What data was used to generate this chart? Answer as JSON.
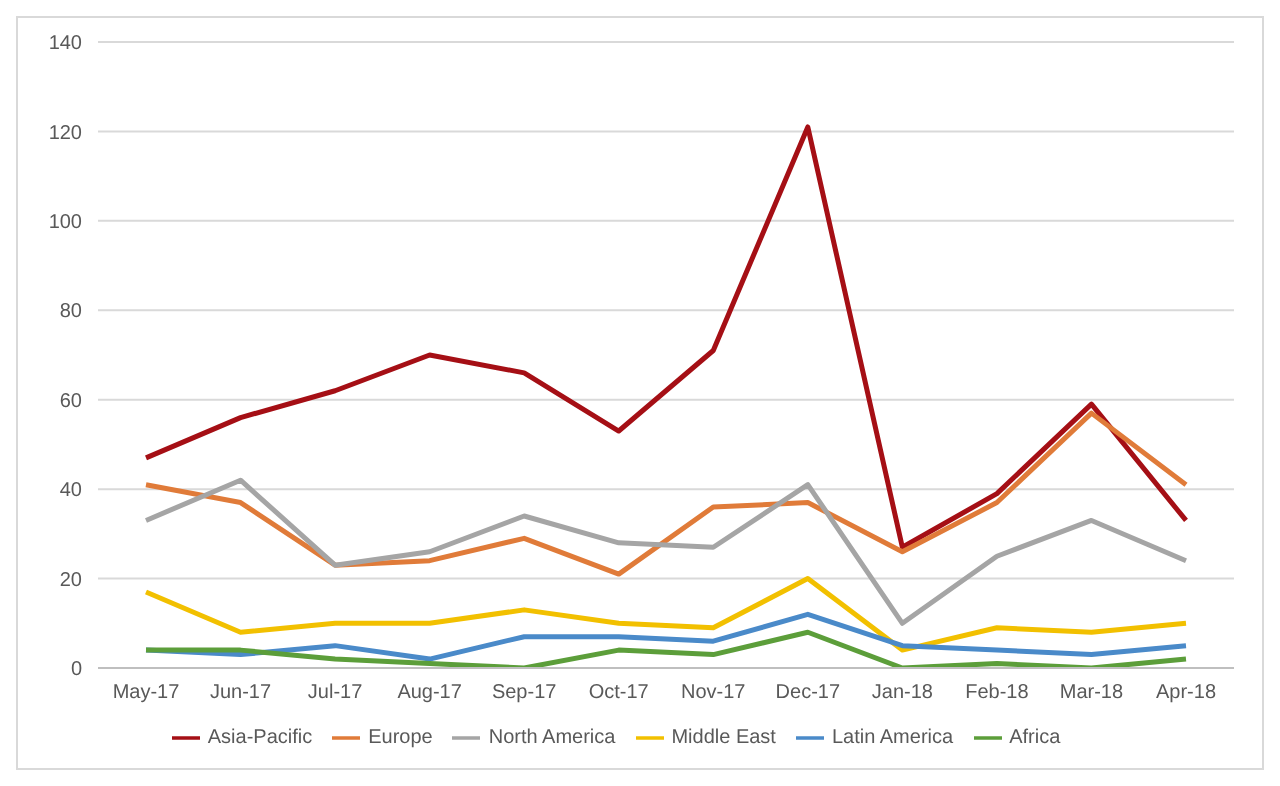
{
  "chart_data": {
    "type": "line",
    "categories": [
      "May-17",
      "Jun-17",
      "Jul-17",
      "Aug-17",
      "Sep-17",
      "Oct-17",
      "Nov-17",
      "Dec-17",
      "Jan-18",
      "Feb-18",
      "Mar-18",
      "Apr-18"
    ],
    "series": [
      {
        "name": "Asia-Pacific",
        "color": "#a50f15",
        "values": [
          47,
          56,
          62,
          70,
          66,
          53,
          71,
          121,
          27,
          39,
          59,
          33
        ]
      },
      {
        "name": "Europe",
        "color": "#e07b39",
        "values": [
          41,
          37,
          23,
          24,
          29,
          21,
          36,
          37,
          26,
          37,
          57,
          41
        ]
      },
      {
        "name": "North America",
        "color": "#a5a5a5",
        "values": [
          33,
          42,
          23,
          26,
          34,
          28,
          27,
          41,
          10,
          25,
          33,
          24
        ]
      },
      {
        "name": "Middle East",
        "color": "#f2c000",
        "values": [
          17,
          8,
          10,
          10,
          13,
          10,
          9,
          20,
          4,
          9,
          8,
          10
        ]
      },
      {
        "name": "Latin America",
        "color": "#4a8ac9",
        "values": [
          4,
          3,
          5,
          2,
          7,
          7,
          6,
          12,
          5,
          4,
          3,
          5
        ]
      },
      {
        "name": "Africa",
        "color": "#5c9e3a",
        "values": [
          4,
          4,
          2,
          1,
          0,
          4,
          3,
          8,
          0,
          1,
          0,
          2
        ]
      }
    ],
    "ylim": [
      0,
      140
    ],
    "yticks": [
      0,
      20,
      40,
      60,
      80,
      100,
      120,
      140
    ],
    "grid": "y",
    "legend": "bottom",
    "marker": "none",
    "line_style": "solid"
  }
}
